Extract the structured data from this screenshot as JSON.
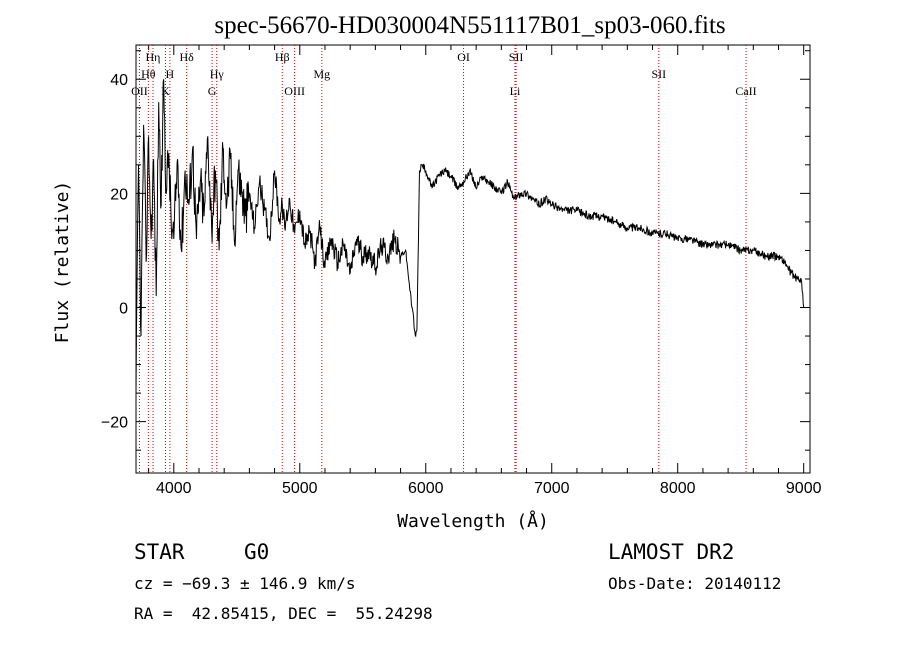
{
  "chart_data": {
    "type": "line",
    "title": "spec-56670-HD030004N551117B01_sp03-060.fits",
    "xlabel": "Wavelength (Å)",
    "ylabel": "Flux (relative)",
    "xlim": [
      3700,
      9050
    ],
    "ylim": [
      -29,
      46
    ],
    "xticks": [
      4000,
      5000,
      6000,
      7000,
      8000,
      9000
    ],
    "yticks": [
      -20,
      0,
      20,
      40
    ],
    "xtick_labels": [
      "4000",
      "5000",
      "6000",
      "7000",
      "8000",
      "9000"
    ],
    "ytick_labels": [
      "−20",
      "0",
      "20",
      "40"
    ],
    "line_color": "#000000",
    "marker_color": "#cc0000",
    "series": [
      {
        "x": [
          3700,
          3720,
          3740,
          3760,
          3780,
          3800,
          3820,
          3840,
          3860,
          3880,
          3900,
          3920,
          3940,
          3960,
          3980,
          4000,
          4030,
          4060,
          4090,
          4120,
          4150,
          4180,
          4210,
          4240,
          4270,
          4300,
          4330,
          4360,
          4390,
          4420,
          4450,
          4480,
          4510,
          4540,
          4570,
          4600,
          4640,
          4680,
          4720,
          4760,
          4800,
          4840,
          4861,
          4880,
          4920,
          4960,
          5000,
          5040,
          5080,
          5120,
          5160,
          5200,
          5250,
          5300,
          5350,
          5400,
          5450,
          5500,
          5550,
          5600,
          5650,
          5700,
          5750,
          5800,
          5840,
          5870,
          5890,
          5900,
          5910,
          5920,
          5930,
          5950,
          5970,
          6000,
          6050,
          6100,
          6150,
          6200,
          6250,
          6300,
          6350,
          6400,
          6450,
          6500,
          6550,
          6600,
          6650,
          6700,
          6750,
          6800,
          6850,
          6900,
          6950,
          7000,
          7100,
          7200,
          7300,
          7400,
          7500,
          7600,
          7700,
          7800,
          7900,
          8000,
          8100,
          8200,
          8300,
          8400,
          8500,
          8600,
          8700,
          8800,
          8850,
          8900,
          8950,
          8980,
          9000
        ],
        "y": [
          -15,
          25,
          -5,
          32,
          8,
          30,
          12,
          26,
          2,
          36,
          18,
          40,
          20,
          27,
          14,
          12,
          26,
          10,
          24,
          18,
          28,
          12,
          22,
          16,
          30,
          14,
          24,
          10,
          28,
          18,
          26,
          12,
          24,
          20,
          16,
          20,
          14,
          22,
          17,
          12,
          24,
          15,
          18,
          14,
          19,
          13,
          17,
          11,
          13,
          8,
          14,
          7,
          12,
          8,
          11,
          6,
          12,
          9,
          10,
          7,
          11,
          9,
          12,
          9,
          10,
          4,
          0,
          -1,
          -4,
          -5,
          -4,
          24,
          25,
          24,
          21,
          23,
          24,
          23,
          21,
          22,
          24,
          21,
          23,
          22,
          21,
          20,
          22,
          19,
          20,
          20,
          19,
          18,
          19,
          18,
          17,
          17,
          16,
          16,
          15,
          14,
          14,
          13,
          13,
          12,
          12,
          11,
          11,
          11,
          10,
          10,
          9,
          9,
          8,
          6,
          5,
          5,
          0
        ]
      }
    ],
    "lines": [
      {
        "label": "OII",
        "x": 3727,
        "row": 3
      },
      {
        "label": "Hθ",
        "x": 3798,
        "row": 2
      },
      {
        "label": "Hη",
        "x": 3835,
        "row": 1
      },
      {
        "label": "K",
        "x": 3934,
        "row": 3
      },
      {
        "label": "H",
        "x": 3969,
        "row": 2
      },
      {
        "label": "Hδ",
        "x": 4102,
        "row": 1
      },
      {
        "label": "G",
        "x": 4304,
        "row": 3
      },
      {
        "label": "Hγ",
        "x": 4341,
        "row": 2
      },
      {
        "label": "Hβ",
        "x": 4861,
        "row": 1
      },
      {
        "label": "OIII",
        "x": 4959,
        "row": 3
      },
      {
        "label": "Mg",
        "x": 5175,
        "row": 2
      },
      {
        "label": "OI",
        "x": 6300,
        "row": 1
      },
      {
        "label": "SII",
        "x": 6717,
        "row": 1
      },
      {
        "label": "Li",
        "x": 6708,
        "row": 3
      },
      {
        "label": "SII",
        "x": 7850,
        "row": 2
      },
      {
        "label": "CaII",
        "x": 8542,
        "row": 3
      }
    ]
  },
  "info": {
    "class_label": "STAR",
    "subclass": "G0",
    "survey": "LAMOST DR2",
    "cz_line": "cz = −69.3 ± 146.9 km/s",
    "obs_date": "Obs-Date: 20140112",
    "coords": "RA =  42.85415, DEC =  55.24298"
  }
}
